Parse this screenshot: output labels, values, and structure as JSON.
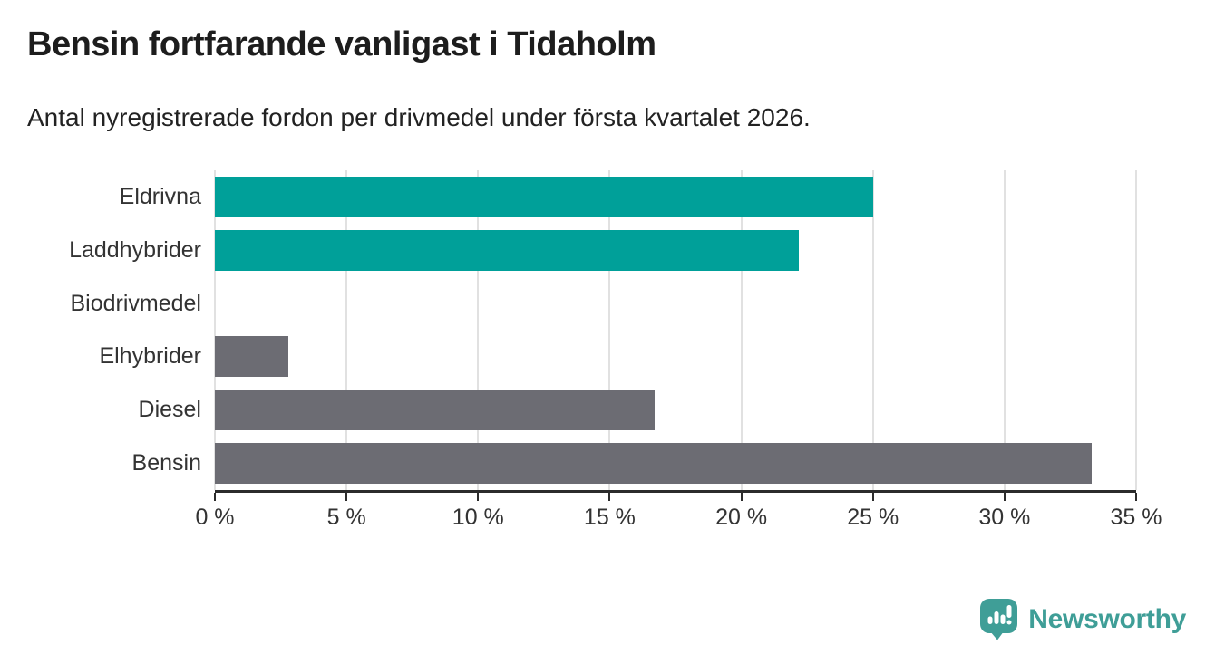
{
  "header": {
    "title": "Bensin fortfarande vanligast i Tidaholm",
    "subtitle": "Antal nyregistrerade fordon per drivmedel under första kvartalet 2026."
  },
  "chart_data": {
    "type": "bar",
    "orientation": "horizontal",
    "title": "Bensin fortfarande vanligast i Tidaholm",
    "subtitle": "Antal nyregistrerade fordon per drivmedel under första kvartalet 2026.",
    "categories": [
      "Eldrivna",
      "Laddhybrider",
      "Biodrivmedel",
      "Elhybrider",
      "Diesel",
      "Bensin"
    ],
    "values": [
      25.0,
      22.2,
      0,
      2.8,
      16.7,
      33.3
    ],
    "unit": "%",
    "bar_colors": [
      "#00a099",
      "#00a099",
      "#6c6c73",
      "#6c6c73",
      "#6c6c73",
      "#6c6c73"
    ],
    "xlim": [
      0,
      35
    ],
    "x_ticks": [
      0,
      5,
      10,
      15,
      20,
      25,
      30,
      35
    ],
    "x_tick_labels": [
      "0 %",
      "5 %",
      "10 %",
      "15 %",
      "20 %",
      "25 %",
      "30 %",
      "35 %"
    ],
    "grid": "vertical",
    "legend": "none"
  },
  "footer": {
    "brand": "Newsworthy"
  },
  "colors": {
    "accent_teal": "#00a099",
    "neutral_gray": "#6c6c73",
    "brand_teal": "#3f9e97",
    "gridline": "#e1e1e1",
    "axis": "#2b2b2b"
  }
}
